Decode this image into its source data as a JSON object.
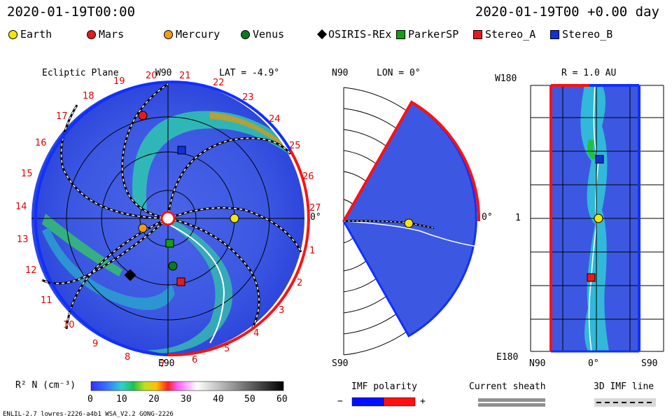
{
  "header": {
    "time_left": "2020-01-19T00:00",
    "time_right": "2020-01-19T00 +0.00 day"
  },
  "legend": [
    {
      "label": "Earth",
      "shape": "circle",
      "color": "#f7e600"
    },
    {
      "label": "Mars",
      "shape": "circle",
      "color": "#e51b1b"
    },
    {
      "label": "Mercury",
      "shape": "circle",
      "color": "#f59a16"
    },
    {
      "label": "Venus",
      "shape": "circle",
      "color": "#0a7a1a"
    },
    {
      "label": "OSIRIS-REx",
      "shape": "diamond",
      "color": "#000000"
    },
    {
      "label": "ParkerSP",
      "shape": "square",
      "color": "#10a010"
    },
    {
      "label": "Stereo_A",
      "shape": "square",
      "color": "#e51b1b"
    },
    {
      "label": "Stereo_B",
      "shape": "square",
      "color": "#1030e0"
    }
  ],
  "panels": {
    "ecliptic": {
      "title": "Ecliptic Plane",
      "top_label": "W90",
      "lat_label": "LAT = -4.9°",
      "bottom_label": "E90",
      "right_label": "0°",
      "ticks": [
        "19",
        "20",
        "21",
        "22",
        "23",
        "24",
        "25",
        "26",
        "27",
        "1",
        "2",
        "3",
        "4",
        "5",
        "6",
        "7",
        "8",
        "9",
        "10",
        "11",
        "12",
        "13",
        "14",
        "15",
        "16",
        "17",
        "18"
      ]
    },
    "meridional": {
      "top_left": "N90",
      "lon_label": "LON = 0°",
      "bottom_left": "S90",
      "right_label": "0°"
    },
    "radial": {
      "r_label": "R = 1.0 AU",
      "top_left": "W180",
      "mid_left": "1",
      "bottom_left": "E180",
      "x_left": "N90",
      "x_mid": "0°",
      "x_right": "S90"
    }
  },
  "colorbar": {
    "label": "R² N (cm⁻³)",
    "ticks": [
      "0",
      "10",
      "20",
      "30",
      "40",
      "50",
      "60"
    ]
  },
  "imf_polarity": {
    "title": "IMF polarity",
    "minus": "−",
    "plus": "+"
  },
  "current_sheath": {
    "title": "Current sheath"
  },
  "imf_line": {
    "title": "3D IMF line"
  },
  "footer": {
    "model": "ENLIL-2.7 lowres-2226-a4b1 WSA_V2.2 GONG-2226"
  },
  "colors": {
    "bg_blue": "#3a55e0",
    "polarity_neg": "#0010ff",
    "polarity_pos": "#ff1010",
    "tick_red": "#e00000"
  }
}
